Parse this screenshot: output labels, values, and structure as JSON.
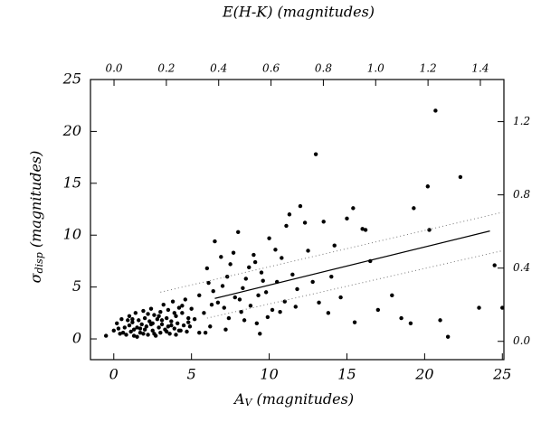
{
  "chart_data": {
    "type": "scatter",
    "xlabel": {
      "main": "A",
      "sub": "V",
      "rest": " (magnitudes)"
    },
    "ylabel": {
      "main": "σ",
      "sub": "disp",
      "rest": " (magnitudes)"
    },
    "x2label": "E(H-K) (magnitudes)",
    "xlim": [
      -1.5,
      25.1
    ],
    "ylim": [
      -2,
      25
    ],
    "x2lim": [
      -0.09,
      1.49
    ],
    "y2lim": [
      -0.1,
      1.43
    ],
    "xticks": [
      0,
      5,
      10,
      15,
      20,
      25
    ],
    "yticks": [
      0,
      5,
      10,
      15,
      20,
      25
    ],
    "x2ticks": [
      {
        "value": 0,
        "label": "0.0"
      },
      0.2,
      0.4,
      0.6,
      0.8,
      {
        "value": 1,
        "label": "1.0"
      },
      1.2,
      1.4
    ],
    "y2ticks": [
      {
        "value": 0,
        "label": "0.0"
      },
      0.4,
      0.8,
      1.2
    ],
    "series": [
      {
        "type": "scatter",
        "color": "#000000",
        "x": [
          -0.5,
          0,
          0.2,
          0.4,
          0.5,
          0.7,
          0.8,
          1,
          1,
          1.1,
          1.2,
          1.3,
          1.4,
          1.5,
          1.5,
          1.6,
          1.7,
          1.8,
          1.9,
          2,
          2,
          2.1,
          2.2,
          2.3,
          2.4,
          2.5,
          2.5,
          2.6,
          2.7,
          2.8,
          2.9,
          3,
          3,
          3.1,
          3.2,
          3.3,
          3.4,
          3.5,
          3.5,
          3.6,
          3.7,
          3.8,
          3.9,
          4,
          4,
          4.1,
          4.2,
          4.3,
          4.4,
          4.5,
          4.6,
          4.7,
          4.8,
          4.9,
          5,
          0.3,
          0.9,
          1.3,
          1.7,
          2.2,
          2.6,
          3.1,
          3.7,
          4.2,
          4.8,
          0.6,
          1.2,
          1.9,
          2.4,
          2.9,
          3.4,
          3.9,
          4.4,
          5.2,
          5.5,
          5.5,
          5.8,
          6,
          6.2,
          6.5,
          6.7,
          7,
          7.2,
          7.5,
          7.8,
          8,
          8.2,
          8.5,
          8.8,
          9,
          9.2,
          9.5,
          9.8,
          10,
          10.2,
          10.5,
          10.8,
          11,
          11.3,
          11.5,
          11.8,
          12,
          6.1,
          6.9,
          7.4,
          8.1,
          8.7,
          9.3,
          9.9,
          10.4,
          11.1,
          11.7,
          5.9,
          6.4,
          7.1,
          7.7,
          8.4,
          9.1,
          9.6,
          10.7,
          12.3,
          6.3,
          7.3,
          8.3,
          9.4,
          12.5,
          13,
          13.2,
          13.5,
          14,
          14.2,
          15,
          15.4,
          15.5,
          16,
          16.2,
          16.5,
          17,
          17.9,
          18.5,
          19.1,
          19.3,
          20.2,
          20.3,
          20.7,
          21,
          21.5,
          22.3,
          23.5,
          24.5,
          25,
          12.8,
          13.8,
          14.6
        ],
        "values": [
          0.3,
          0.8,
          1.5,
          0.5,
          1.9,
          1.1,
          0.4,
          1.3,
          2.2,
          0.7,
          1.6,
          0.9,
          2.5,
          1.1,
          0.2,
          1.8,
          0.6,
          1.4,
          2.7,
          0.9,
          2.0,
          1.2,
          0.4,
          1.7,
          2.9,
          0.8,
          1.5,
          2.3,
          0.3,
          1.9,
          1.1,
          2.6,
          0.6,
          1.4,
          3.3,
          0.9,
          2.0,
          1.2,
          2.8,
          0.5,
          1.7,
          3.6,
          1.0,
          2.2,
          0.4,
          1.5,
          3.0,
          0.8,
          2.5,
          1.3,
          3.8,
          0.7,
          2.0,
          1.2,
          2.9,
          1.0,
          1.8,
          0.3,
          1.0,
          2.4,
          0.5,
          1.8,
          1.3,
          0.8,
          1.6,
          0.6,
          1.9,
          0.5,
          1.4,
          2.2,
          0.7,
          2.5,
          3.2,
          1.9,
          0.6,
          4.2,
          2.5,
          6.8,
          1.2,
          9.4,
          3.5,
          5.1,
          0.9,
          7.2,
          4.0,
          10.3,
          2.6,
          5.8,
          3.2,
          8.1,
          1.5,
          6.4,
          4.5,
          9.7,
          2.8,
          5.5,
          7.8,
          3.6,
          12.0,
          6.2,
          4.8,
          12.8,
          5.4,
          7.9,
          2.0,
          3.8,
          6.9,
          4.2,
          2.1,
          8.6,
          10.9,
          3.1,
          0.6,
          4.6,
          3.0,
          8.3,
          1.8,
          7.4,
          5.6,
          2.6,
          11.2,
          3.3,
          6.0,
          4.9,
          0.5,
          8.5,
          17.8,
          3.5,
          11.3,
          6.0,
          9.0,
          11.6,
          12.6,
          1.6,
          10.6,
          10.5,
          7.5,
          2.8,
          4.2,
          2.0,
          1.5,
          12.6,
          14.7,
          10.5,
          22.0,
          1.8,
          0.2,
          15.6,
          3.0,
          7.1,
          3.0,
          5.5,
          2.5,
          4.0
        ]
      },
      {
        "type": "line",
        "color": "#000000",
        "dash": false,
        "x": [
          6.5,
          24.2
        ],
        "values": [
          3.9,
          10.4
        ]
      },
      {
        "type": "line",
        "color": "#777777",
        "dash": true,
        "x": [
          3,
          25
        ],
        "values": [
          4.5,
          12.2
        ]
      },
      {
        "type": "line",
        "color": "#777777",
        "dash": true,
        "x": [
          6,
          25
        ],
        "values": [
          2.0,
          8.5
        ]
      }
    ]
  }
}
